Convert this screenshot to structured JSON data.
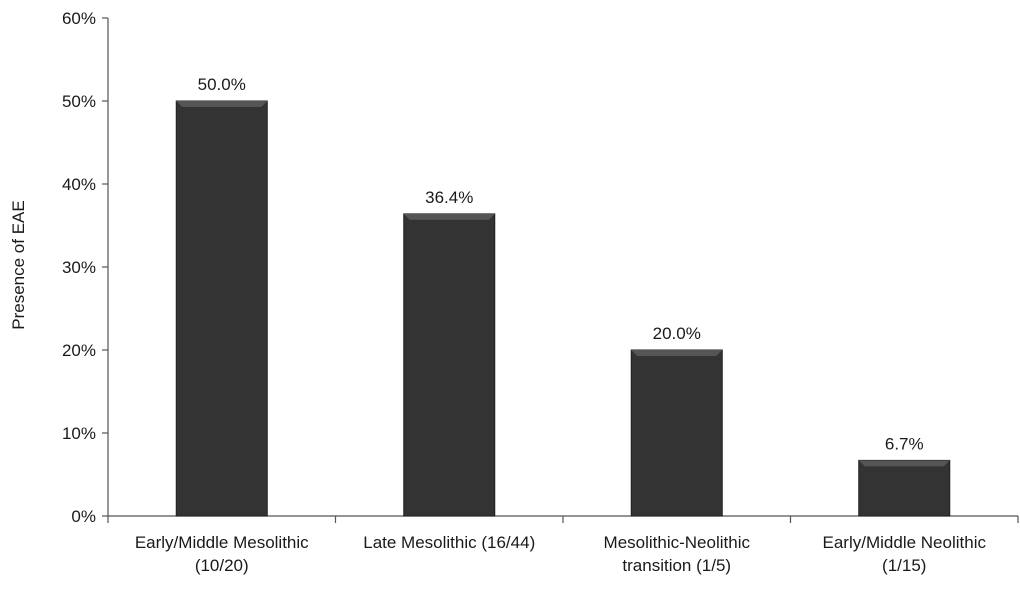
{
  "chart_data": {
    "type": "bar",
    "title": "",
    "xlabel": "",
    "ylabel": "Presence of EAE",
    "categories": [
      [
        "Early/Middle Mesolithic",
        "(10/20)"
      ],
      [
        "Late Mesolithic  (16/44)"
      ],
      [
        "Mesolithic-Neolithic",
        "transition (1/5)"
      ],
      [
        "Early/Middle Neolithic",
        "(1/15)"
      ]
    ],
    "values": [
      50.0,
      36.4,
      20.0,
      6.7
    ],
    "data_labels": [
      "50.0%",
      "36.4%",
      "20.0%",
      "6.7%"
    ],
    "y_ticks": [
      "0%",
      "10%",
      "20%",
      "30%",
      "40%",
      "50%",
      "60%"
    ],
    "ylim": [
      0,
      60
    ],
    "grid": false,
    "legend": "none",
    "colors": {
      "bar": "#333333",
      "bar_top": "#555555",
      "axis": "#555555"
    }
  }
}
